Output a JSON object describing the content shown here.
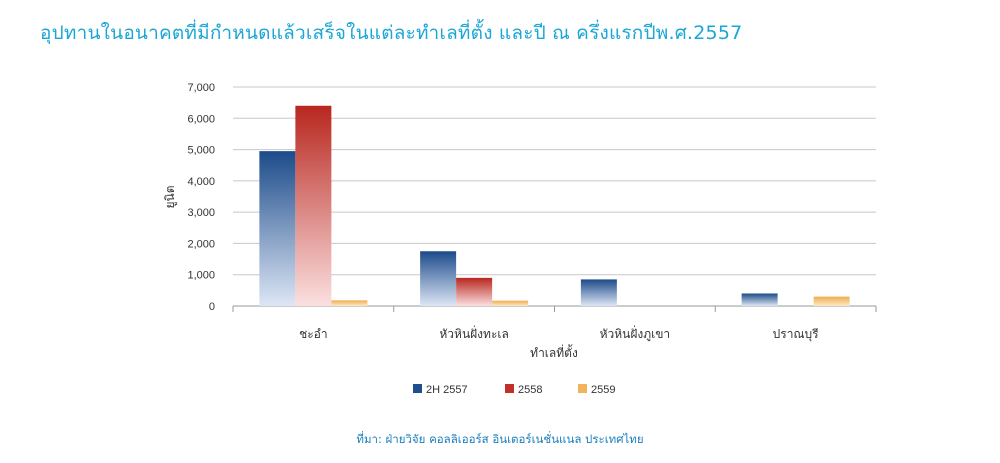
{
  "title": "อุปทานในอนาคตที่มีกำหนดแล้วเสร็จในแต่ละทำเลที่ตั้ง และปี ณ ครึ่งแรกปีพ.ศ.2557",
  "source": "ที่มา: ฝ่ายวิจัย คอลลิเออร์ส อินเตอร์เนชั่นแนล ประเทศไทย",
  "chart_data": {
    "type": "bar",
    "categories": [
      "ชะอำ",
      "หัวหินฝั่งทะเล",
      "หัวหินฝั่งภูเขา",
      "ปราณบุรี"
    ],
    "series": [
      {
        "name": "2H 2557",
        "values": [
          4950,
          1750,
          850,
          400
        ],
        "color": "#1f4f8f"
      },
      {
        "name": "2558",
        "values": [
          6400,
          900,
          0,
          0
        ],
        "color": "#c0312b"
      },
      {
        "name": "2559",
        "values": [
          180,
          170,
          0,
          300
        ],
        "color": "#f2b45a"
      }
    ],
    "ylim": [
      0,
      7000
    ],
    "yticks": [
      "0",
      "1,000",
      "2,000",
      "3,000",
      "4,000",
      "5,000",
      "6,000",
      "7,000"
    ],
    "xlabel": "ทำเลที่ตั้ง",
    "ylabel": "ยูนิต",
    "grid": true,
    "legend_position": "bottom"
  }
}
